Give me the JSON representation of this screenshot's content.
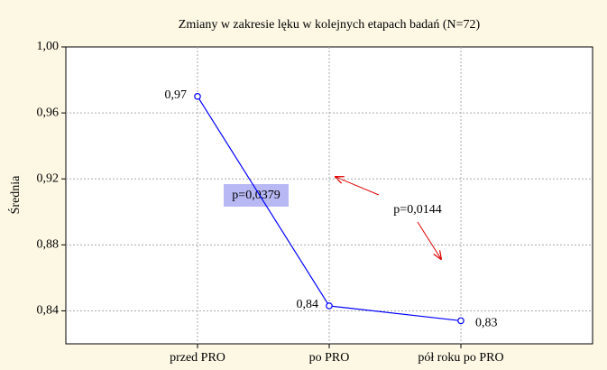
{
  "chart_data": {
    "type": "line",
    "title": "Zmiany w zakresie lęku w kolejnych etapach badań (N=72)",
    "y_label": "Średnia",
    "categories": [
      "przed PRO",
      "po PRO",
      "pół roku po PRO"
    ],
    "series": [
      {
        "name": "Średnia",
        "color": "#0000ff",
        "values": [
          0.97,
          0.843,
          0.834
        ],
        "value_labels": [
          "0,97",
          "0,84",
          "0,83"
        ]
      }
    ],
    "ylim": [
      0.82,
      1.0
    ],
    "yticks": [
      {
        "value": 0.84,
        "label": "0,84"
      },
      {
        "value": 0.88,
        "label": "0,88"
      },
      {
        "value": 0.92,
        "label": "0,92"
      },
      {
        "value": 0.96,
        "label": "0,96"
      },
      {
        "value": 1.0,
        "label": "1,00"
      }
    ],
    "grid": true,
    "annotations": [
      "p=0,0379",
      "p=0,0144"
    ]
  }
}
